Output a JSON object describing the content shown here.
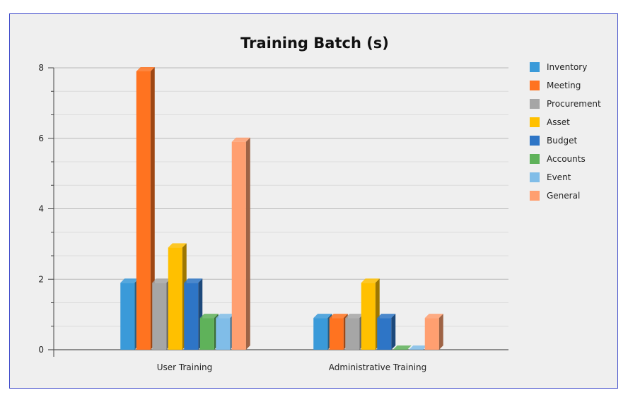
{
  "chart_data": {
    "type": "bar",
    "title": "Training Batch (s)",
    "xlabel": "",
    "ylabel": "",
    "ylim": [
      0,
      8
    ],
    "yticks": [
      0,
      2,
      4,
      6,
      8
    ],
    "grid": true,
    "legend_position": "right",
    "categories": [
      "User Training",
      "Administrative Training"
    ],
    "series": [
      {
        "name": "Inventory",
        "color": "#3a9ad9",
        "values": [
          1.9,
          0.9
        ]
      },
      {
        "name": "Meeting",
        "color": "#ff7320",
        "values": [
          7.9,
          0.9
        ]
      },
      {
        "name": "Procurement",
        "color": "#a6a6a6",
        "values": [
          1.9,
          0.9
        ]
      },
      {
        "name": "Asset",
        "color": "#ffc000",
        "values": [
          2.9,
          1.9
        ]
      },
      {
        "name": "Budget",
        "color": "#2e75c6",
        "values": [
          1.9,
          0.9
        ]
      },
      {
        "name": "Accounts",
        "color": "#5fb25a",
        "values": [
          0.9,
          0
        ]
      },
      {
        "name": "Event",
        "color": "#80bde8",
        "values": [
          0.9,
          0
        ]
      },
      {
        "name": "General",
        "color": "#ff9f70",
        "values": [
          5.9,
          0.9
        ]
      }
    ]
  }
}
